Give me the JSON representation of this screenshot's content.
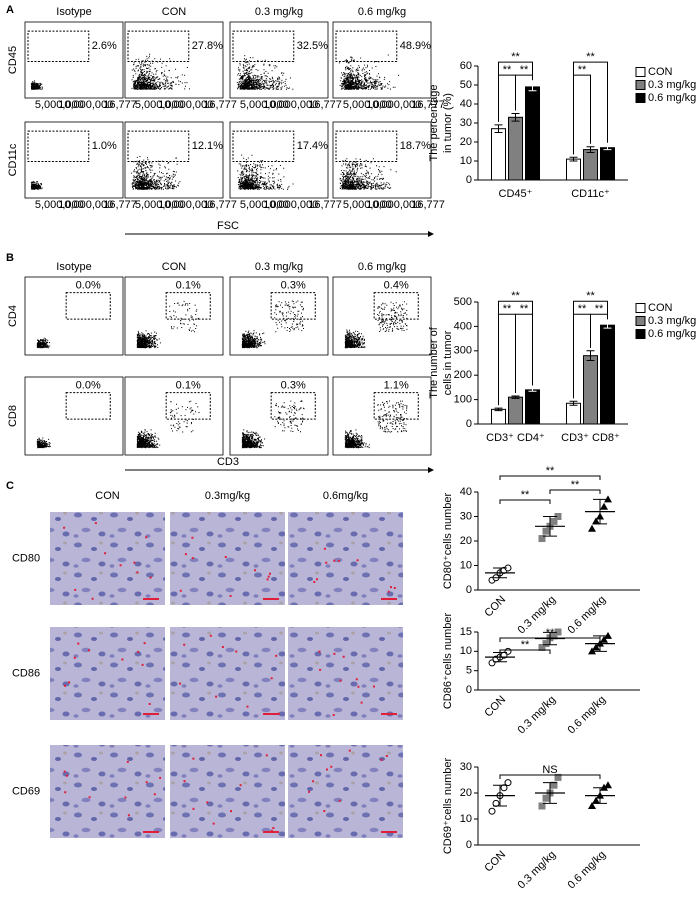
{
  "figure": {
    "panel_a": {
      "letter": "A",
      "columns": [
        "Isotype",
        "CON",
        "0.3 mg/kg",
        "0.6 mg/kg"
      ],
      "rows": [
        {
          "label": "CD45",
          "gates": [
            "2.6%",
            "27.8%",
            "32.5%",
            "48.9%"
          ]
        },
        {
          "label": "CD11c",
          "gates": [
            "1.0%",
            "12.1%",
            "17.4%",
            "18.7%"
          ]
        }
      ],
      "x_axis_label": "FSC",
      "x_tick_labels": [
        "5,000,000",
        "10,000,000",
        "16,777"
      ]
    },
    "panel_b": {
      "letter": "B",
      "columns": [
        "Isotype",
        "CON",
        "0.3 mg/kg",
        "0.6 mg/kg"
      ],
      "rows": [
        {
          "label": "CD4",
          "gates": [
            "0.0%",
            "0.1%",
            "0.3%",
            "0.4%"
          ]
        },
        {
          "label": "CD8",
          "gates": [
            "0.0%",
            "0.1%",
            "0.3%",
            "1.1%"
          ]
        }
      ],
      "x_axis_label": "CD3"
    },
    "panel_c": {
      "letter": "C",
      "columns": [
        "CON",
        "0.3mg/kg",
        "0.6mg/kg"
      ],
      "rows": [
        "CD80",
        "CD86",
        "CD69"
      ]
    }
  },
  "chart_data": [
    {
      "type": "bar",
      "y_label": [
        "The percentage",
        "in tumor (%)"
      ],
      "categories": [
        "CD45⁺",
        "CD11c⁺"
      ],
      "series": [
        {
          "name": "CON",
          "color": "#ffffff",
          "values": [
            27,
            11
          ],
          "errors": [
            2,
            1
          ]
        },
        {
          "name": "0.3 mg/kg",
          "color": "#808080",
          "values": [
            33,
            16
          ],
          "errors": [
            2,
            1.5
          ]
        },
        {
          "name": "0.6 mg/kg",
          "color": "#000000",
          "values": [
            49,
            17
          ],
          "errors": [
            2,
            1
          ]
        }
      ],
      "ylim": [
        0,
        60
      ],
      "yticks": [
        0,
        10,
        20,
        30,
        40,
        50,
        60
      ],
      "legend": "right",
      "annotations": [
        "**",
        "**",
        "**",
        "**",
        "**"
      ]
    },
    {
      "type": "bar",
      "y_label": [
        "The number of",
        "cells in tumor"
      ],
      "categories": [
        "CD3⁺ CD4⁺",
        "CD3⁺ CD8⁺"
      ],
      "series": [
        {
          "name": "CON",
          "color": "#ffffff",
          "values": [
            60,
            85
          ],
          "errors": [
            5,
            8
          ]
        },
        {
          "name": "0.3 mg/kg",
          "color": "#808080",
          "values": [
            110,
            280
          ],
          "errors": [
            5,
            20
          ]
        },
        {
          "name": "0.6 mg/kg",
          "color": "#000000",
          "values": [
            140,
            405
          ],
          "errors": [
            6,
            12
          ]
        }
      ],
      "ylim": [
        0,
        500
      ],
      "yticks": [
        0,
        100,
        200,
        300,
        400,
        500
      ],
      "legend": "right",
      "annotations": [
        "**",
        "**",
        "**",
        "**",
        "**",
        "**"
      ]
    },
    {
      "type": "dotplot",
      "y_label": "CD80⁺cells number",
      "categories": [
        "CON",
        "0.3 mg/kg",
        "0.6 mg/kg"
      ],
      "colors": [
        "#ffffff",
        "#808080",
        "#000000"
      ],
      "markers": [
        "circle",
        "square",
        "triangle"
      ],
      "points": [
        [
          4,
          5,
          7,
          8,
          9
        ],
        [
          21,
          24,
          26,
          28,
          30
        ],
        [
          25,
          28,
          30,
          34,
          37
        ]
      ],
      "means": [
        7,
        26,
        32
      ],
      "errors": [
        2,
        4,
        5
      ],
      "ylim": [
        0,
        40
      ],
      "yticks": [
        0,
        10,
        20,
        30,
        40
      ],
      "annotations": [
        "**",
        "**",
        "**"
      ]
    },
    {
      "type": "dotplot",
      "y_label": "CD86⁺cells number",
      "categories": [
        "CON",
        "0.3 mg/kg",
        "0.6 mg/kg"
      ],
      "colors": [
        "#ffffff",
        "#808080",
        "#000000"
      ],
      "markers": [
        "circle",
        "square",
        "triangle"
      ],
      "points": [
        [
          7,
          8,
          8.5,
          9,
          10
        ],
        [
          11,
          12,
          13.5,
          14,
          15
        ],
        [
          10,
          11,
          12,
          13,
          14
        ]
      ],
      "means": [
        8.5,
        13.3,
        12
      ],
      "errors": [
        1.2,
        1.6,
        2
      ],
      "ylim": [
        0,
        15
      ],
      "yticks": [
        0,
        5,
        10,
        15
      ],
      "annotations": [
        "**",
        "**"
      ]
    },
    {
      "type": "dotplot",
      "y_label": "CD69⁺cells number",
      "categories": [
        "CON",
        "0.3 mg/kg",
        "0.6 mg/kg"
      ],
      "colors": [
        "#ffffff",
        "#808080",
        "#000000"
      ],
      "markers": [
        "circle",
        "square",
        "triangle"
      ],
      "points": [
        [
          13,
          16,
          19,
          22,
          24
        ],
        [
          15,
          18,
          20,
          23,
          26
        ],
        [
          15,
          17,
          19,
          22,
          23
        ]
      ],
      "means": [
        19,
        20,
        19
      ],
      "errors": [
        4,
        4,
        3
      ],
      "ylim": [
        0,
        30
      ],
      "yticks": [
        0,
        10,
        20,
        30
      ],
      "annotations": [
        "NS"
      ]
    }
  ]
}
